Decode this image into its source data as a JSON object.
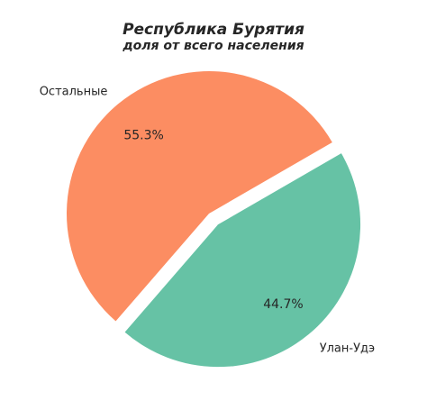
{
  "chart_data": {
    "type": "pie",
    "title": "Республика Бурятия",
    "subtitle": "доля от всего населения",
    "slices": [
      {
        "label": "Улан-Удэ",
        "value": 44.7,
        "pct_label": "44.7%",
        "color": "#66c2a5",
        "exploded": true
      },
      {
        "label": "Остальные",
        "value": 55.3,
        "pct_label": "55.3%",
        "color": "#fc8d62",
        "exploded": false
      }
    ]
  }
}
